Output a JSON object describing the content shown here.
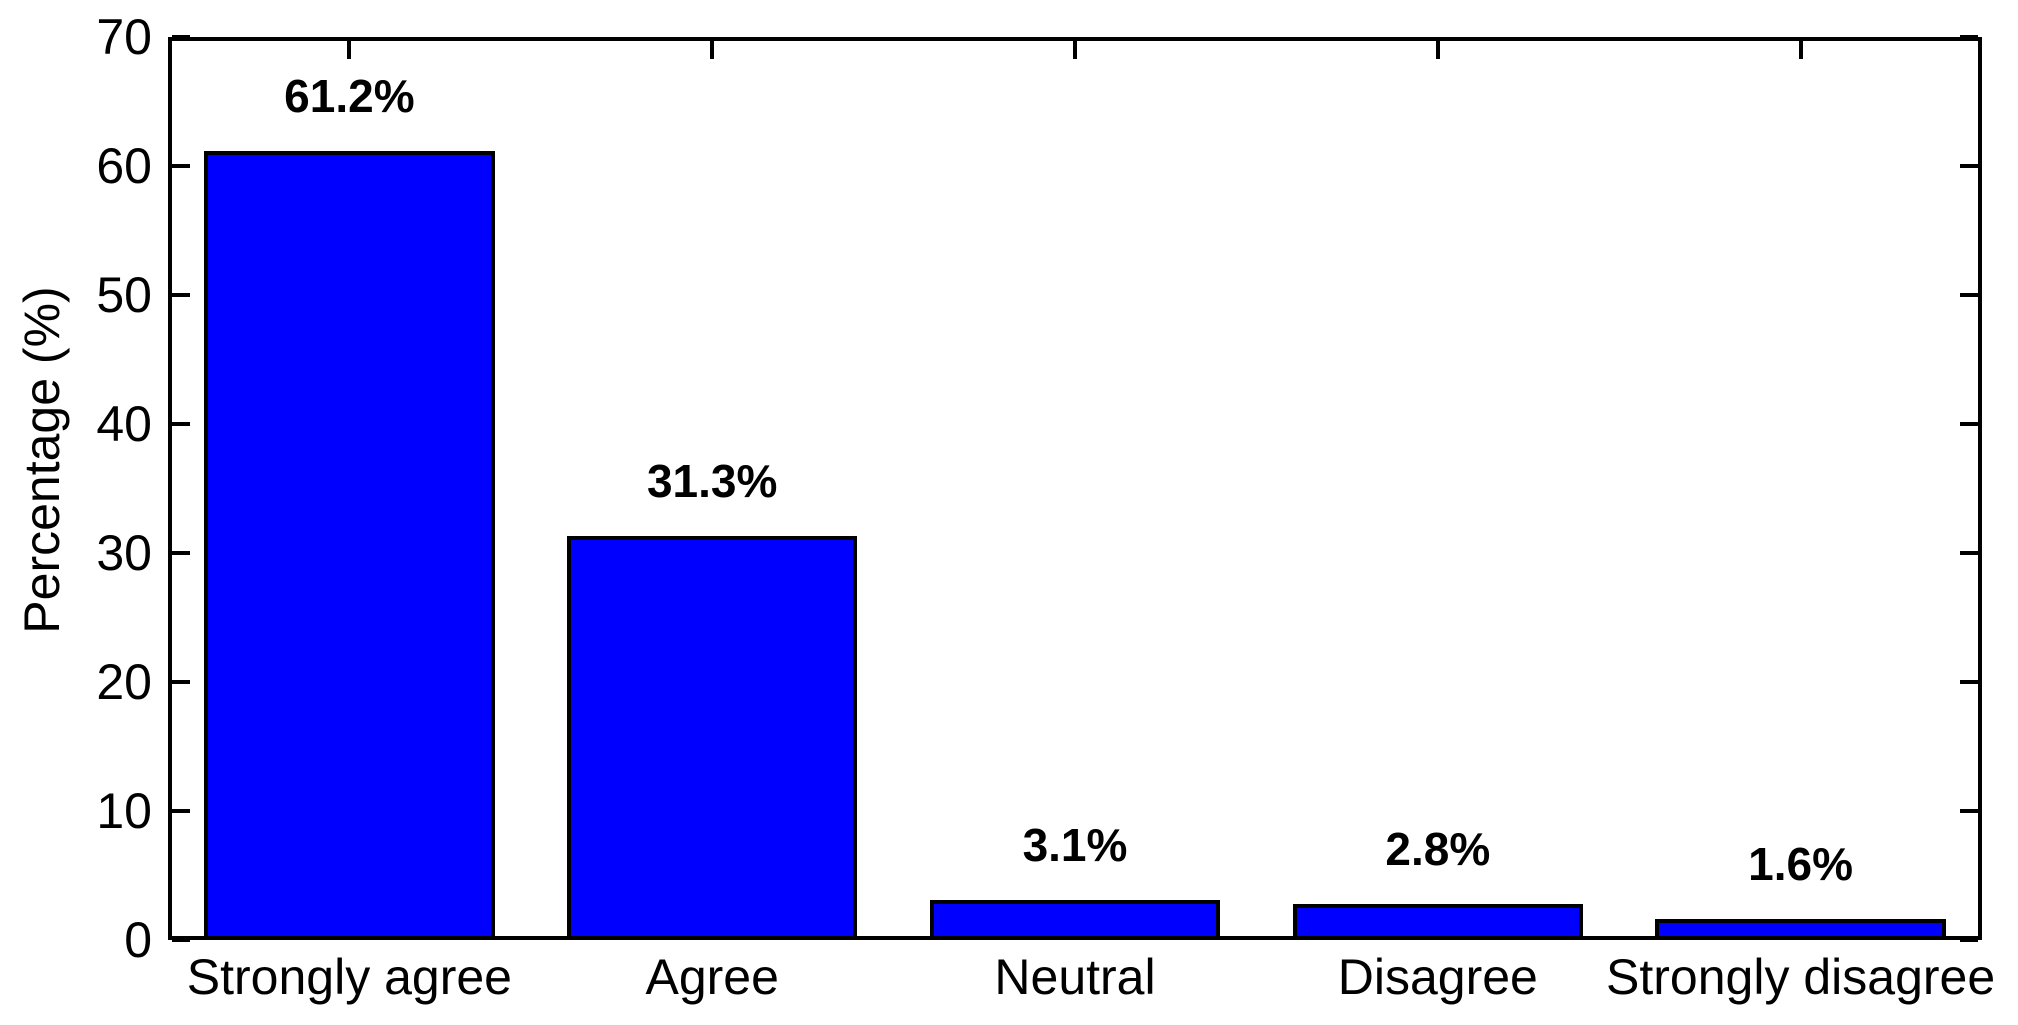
{
  "chart_data": {
    "type": "bar",
    "title": "",
    "xlabel": "",
    "ylabel": "Percentage (%)",
    "categories": [
      "Strongly agree",
      "Agree",
      "Neutral",
      "Disagree",
      "Strongly disagree"
    ],
    "values": [
      61.2,
      31.3,
      3.1,
      2.8,
      1.6
    ],
    "value_labels": [
      "61.2%",
      "31.3%",
      "3.1%",
      "2.8%",
      "1.6%"
    ],
    "ylim": [
      0,
      70
    ],
    "yticks": [
      0,
      10,
      20,
      30,
      40,
      50,
      60,
      70
    ],
    "ytick_labels": [
      "0",
      "10",
      "20",
      "30",
      "40",
      "50",
      "60",
      "70"
    ],
    "grid": false,
    "legend_position": "none",
    "bar_width_fraction": 0.8,
    "colors": {
      "bar_fill": "#0000ff",
      "bar_edge": "#000000",
      "axis": "#000000",
      "text": "#000000",
      "background": "#ffffff"
    }
  }
}
